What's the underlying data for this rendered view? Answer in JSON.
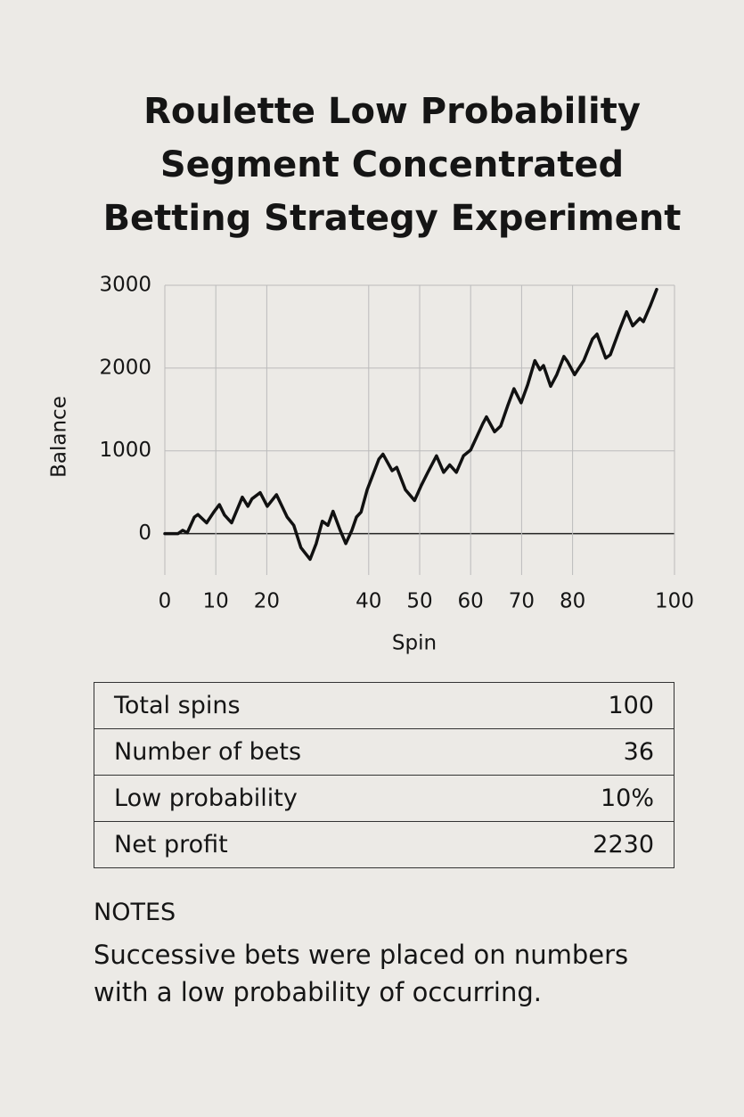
{
  "chart_data": {
    "type": "line",
    "title": "Roulette Low Probability Segment Concentrated Betting Strategy Experiment",
    "x_label": "Spin",
    "y_label": "Balance",
    "x": [
      0,
      2.6,
      3.5,
      4.4,
      5.8,
      6.5,
      8.2,
      9.6,
      10.7,
      11.7,
      13.1,
      15.2,
      16.3,
      17.1,
      18.7,
      20.1,
      21.9,
      24,
      25.3,
      26.7,
      27.4,
      28.5,
      29.7,
      30.9,
      32,
      33,
      34.4,
      35.5,
      36.7,
      37.6,
      38.5,
      39.7,
      40.7,
      42,
      42.8,
      44.6,
      45.5,
      47.2,
      49,
      50.3,
      51.6,
      53.3,
      54.7,
      55.9,
      57.2,
      58.6,
      60,
      61.2,
      62.4,
      63.1,
      64.7,
      65.9,
      67.3,
      68.5,
      69.9,
      71.2,
      72.6,
      73.6,
      74.3,
      75.7,
      76.9,
      78.3,
      79,
      80.4,
      82.2,
      83.9,
      84.8,
      86.5,
      87.4,
      89.2,
      90.6,
      91.8,
      93.2,
      93.9,
      95.3,
      96.5
    ],
    "values": [
      0,
      0,
      40,
      10,
      200,
      230,
      130,
      260,
      350,
      225,
      130,
      440,
      330,
      420,
      495,
      330,
      470,
      200,
      100,
      -170,
      -225,
      -310,
      -120,
      150,
      100,
      270,
      40,
      -120,
      40,
      200,
      260,
      530,
      690,
      900,
      960,
      760,
      800,
      530,
      400,
      580,
      740,
      940,
      740,
      830,
      740,
      940,
      1010,
      1170,
      1330,
      1410,
      1230,
      1300,
      1550,
      1750,
      1580,
      1800,
      2090,
      1980,
      2030,
      1780,
      1920,
      2140,
      2080,
      1920,
      2090,
      2350,
      2410,
      2120,
      2160,
      2460,
      2680,
      2510,
      2600,
      2560,
      2760,
      2950
    ],
    "color": "#111111",
    "xlim": [
      0,
      100
    ],
    "xticks": [
      0,
      10,
      20,
      40,
      50,
      60,
      70,
      80,
      100
    ],
    "ylim": [
      -500,
      3000
    ],
    "yticks": [
      0,
      1000,
      2000,
      3000
    ],
    "grid": true
  },
  "table": {
    "rows": [
      [
        "Total spins",
        "100"
      ],
      [
        "Number of bets",
        "36"
      ],
      [
        "Low probability",
        "10%"
      ],
      [
        "Net profit",
        "2230"
      ]
    ]
  },
  "notes": {
    "heading": "NOTES",
    "text": "Successive bets were placed on numbers with a low probability of occurring."
  }
}
